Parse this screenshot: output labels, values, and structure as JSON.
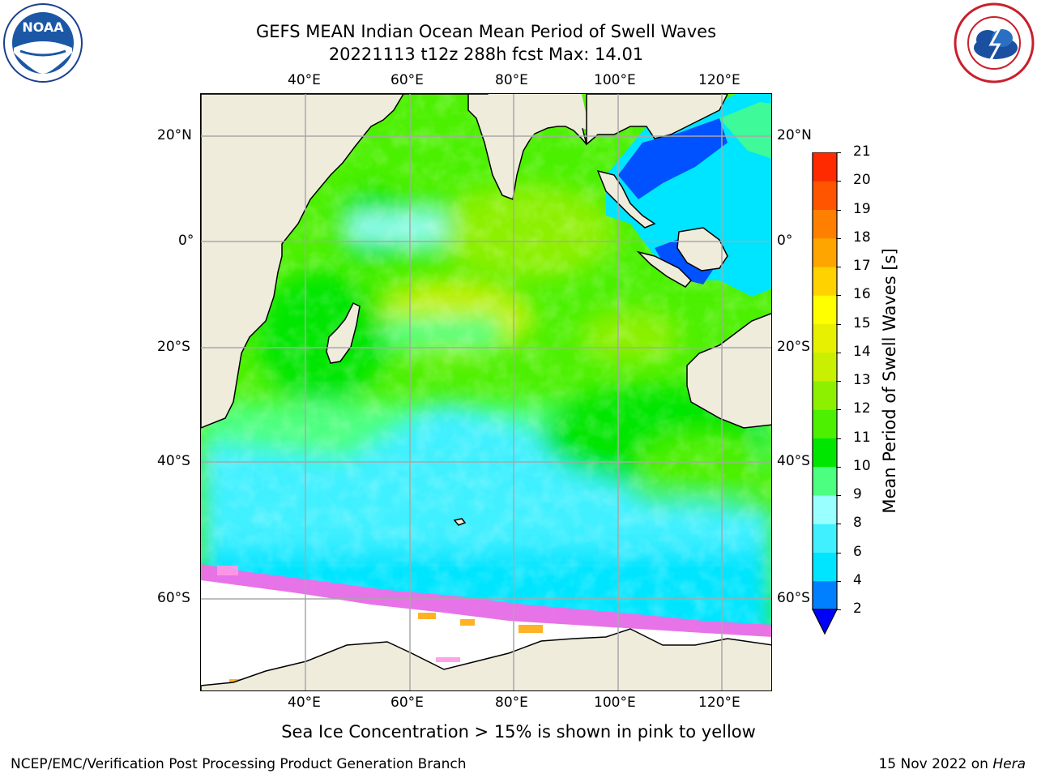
{
  "header": {
    "title_line1": "GEFS MEAN Indian Ocean Mean Period of Swell Waves",
    "title_line2": "20221113 t12z 288h fcst   Max: 14.01"
  },
  "logos": {
    "left": {
      "text": "NOAA",
      "ring_text": "NATIONAL OCEANIC AND ATMOSPHERIC ADMINISTRATION · U.S. DEPARTMENT OF COMMERCE"
    },
    "right": {
      "ring_text": "NATIONAL WEATHER SERVICE"
    }
  },
  "map": {
    "lon_labels": [
      "40°E",
      "60°E",
      "80°E",
      "100°E",
      "120°E"
    ],
    "lat_labels": [
      "20°N",
      "0°",
      "20°S",
      "40°S",
      "60°S"
    ],
    "colors": {
      "land": "#efecdc",
      "ice": "#ffffff",
      "grid": "#a8a8a8",
      "coast": "#000000"
    }
  },
  "colorbar": {
    "label": "Mean Period of Swell Waves [s]",
    "ticks": [
      "2",
      "4",
      "6",
      "8",
      "9",
      "10",
      "11",
      "12",
      "13",
      "14",
      "15",
      "16",
      "17",
      "18",
      "19",
      "20",
      "21"
    ],
    "colors": [
      "#0040ff",
      "#0080ff",
      "#00e5ff",
      "#40f0ff",
      "#99ffff",
      "#4dff80",
      "#00e600",
      "#4cf000",
      "#8cf000",
      "#c8f000",
      "#e6f000",
      "#ffff00",
      "#ffd200",
      "#ffa500",
      "#ff8000",
      "#ff5500",
      "#ff2a00",
      "#ff0000"
    ],
    "under_color": "#0000ff"
  },
  "notes": {
    "sea_ice": "Sea Ice Concentration > 15% is shown in pink to yellow"
  },
  "footer": {
    "left": "NCEP/EMC/Verification Post Processing Product Generation Branch",
    "date": "15 Nov 2022 on ",
    "host": "Hera"
  }
}
